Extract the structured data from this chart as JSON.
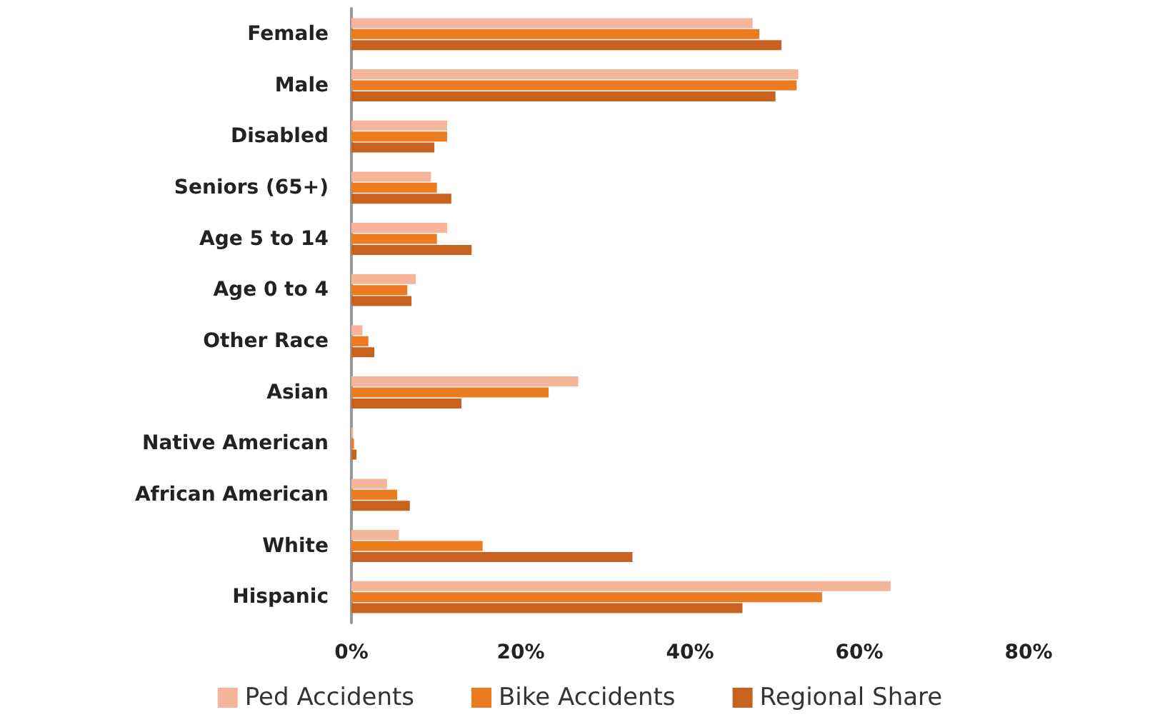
{
  "chart_data": {
    "type": "bar",
    "orientation": "horizontal",
    "categories": [
      "Female",
      "Male",
      "Disabled",
      "Seniors (65+)",
      "Age 5 to 14",
      "Age 0 to 4",
      "Other Race",
      "Asian",
      "Native American",
      "African American",
      "White",
      "Hispanic"
    ],
    "series": [
      {
        "name": "Ped Accidents",
        "color": "#f4b59a",
        "values": [
          47.4,
          52.8,
          11.3,
          9.4,
          11.3,
          7.6,
          1.3,
          26.8,
          0.2,
          4.2,
          5.6,
          63.7
        ]
      },
      {
        "name": "Bike Accidents",
        "color": "#ec7a1f",
        "values": [
          48.2,
          52.6,
          11.3,
          10.1,
          10.1,
          6.6,
          2.0,
          23.3,
          0.3,
          5.4,
          15.5,
          55.6
        ]
      },
      {
        "name": "Regional Share",
        "color": "#c8621e",
        "values": [
          50.8,
          50.1,
          9.8,
          11.8,
          14.2,
          7.1,
          2.7,
          13.0,
          0.6,
          6.9,
          33.2,
          46.2
        ]
      }
    ],
    "xlim": [
      0,
      80
    ],
    "xticks": [
      {
        "value": 0,
        "label": "0%"
      },
      {
        "value": 20,
        "label": "20%"
      },
      {
        "value": 40,
        "label": "40%"
      },
      {
        "value": 60,
        "label": "60%"
      },
      {
        "value": 80,
        "label": "80%"
      }
    ],
    "grid": false,
    "legend": "bottom"
  }
}
